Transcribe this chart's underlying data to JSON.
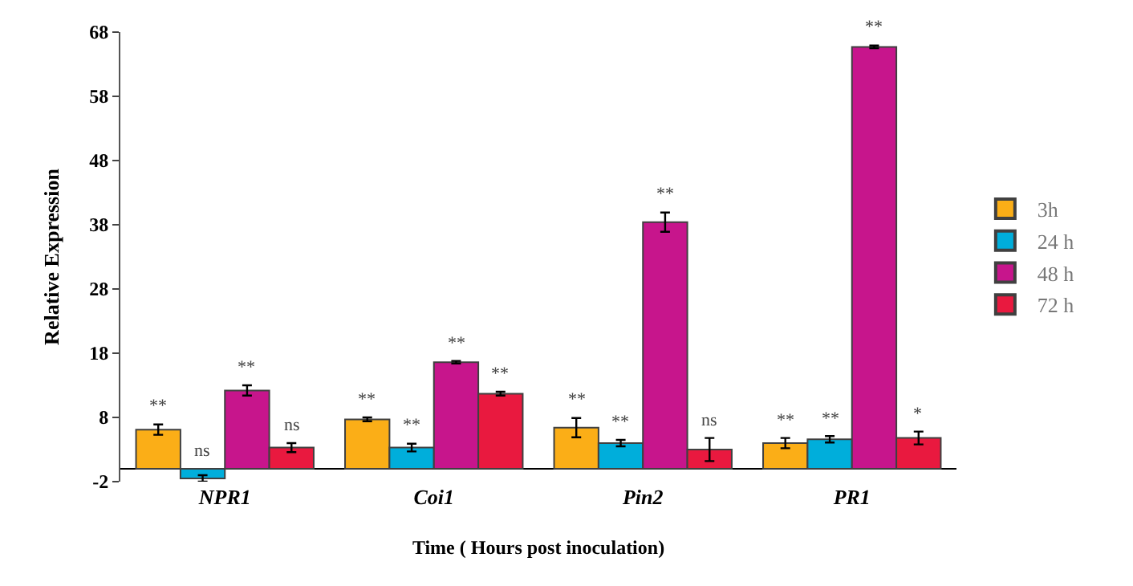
{
  "chart_data": {
    "type": "bar",
    "xlabel": "Time ( Hours post inoculation)",
    "ylabel": "Relative Expression",
    "categories": [
      "NPR1",
      "Coi1",
      "Pin2",
      "PR1"
    ],
    "series": [
      {
        "name": "3h",
        "color": "#fbae17",
        "values": [
          6.1,
          7.7,
          6.4,
          4.0
        ],
        "errors": [
          0.8,
          0.3,
          1.5,
          0.8
        ],
        "value_labels": [
          "**",
          "**",
          "**",
          "**"
        ]
      },
      {
        "name": "24 h",
        "color": "#00aedb",
        "values": [
          -1.5,
          3.3,
          4.0,
          4.6
        ],
        "errors": [
          0.5,
          0.6,
          0.5,
          0.5
        ],
        "value_labels": [
          "ns",
          "**",
          "**",
          "**"
        ]
      },
      {
        "name": "48 h",
        "color": "#c7158c",
        "values": [
          12.2,
          16.6,
          38.4,
          65.7
        ],
        "errors": [
          0.8,
          0.2,
          1.5,
          0.2
        ],
        "value_labels": [
          "**",
          "**",
          "**",
          "**"
        ]
      },
      {
        "name": "72 h",
        "color": "#e9193f",
        "values": [
          3.3,
          11.7,
          3.0,
          4.8
        ],
        "errors": [
          0.7,
          0.3,
          1.8,
          1.0
        ],
        "value_labels": [
          "ns",
          "**",
          "ns",
          "*"
        ]
      }
    ],
    "ylim": [
      -2,
      68
    ],
    "yticks": [
      -2,
      8,
      18,
      28,
      38,
      48,
      58,
      68
    ],
    "legend": "right"
  }
}
